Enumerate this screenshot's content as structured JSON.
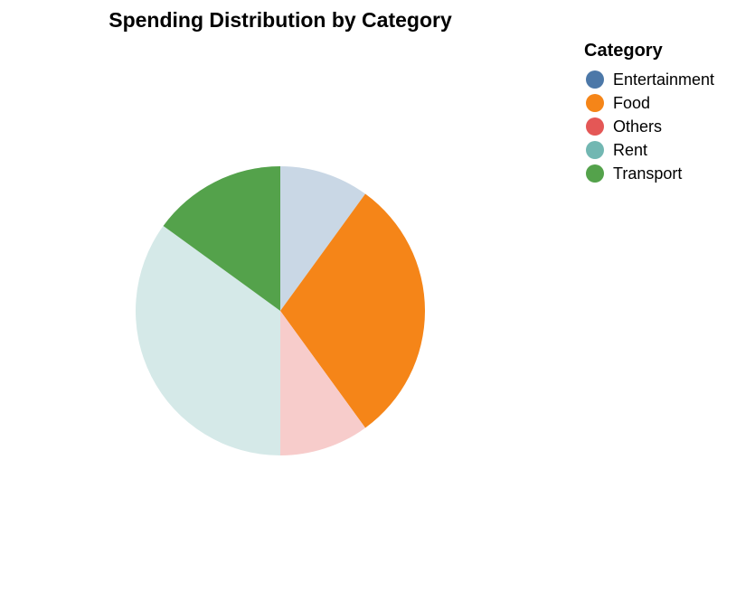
{
  "chart_data": {
    "type": "pie",
    "title": "Spending Distribution by Category",
    "legend": {
      "title": "Category",
      "placement": "top-right",
      "entries": [
        {
          "label": "Entertainment",
          "color": "#4c78a8"
        },
        {
          "label": "Food",
          "color": "#f58518"
        },
        {
          "label": "Others",
          "color": "#e45756"
        },
        {
          "label": "Rent",
          "color": "#72b7b2"
        },
        {
          "label": "Transport",
          "color": "#54a24b"
        }
      ]
    },
    "slices": [
      {
        "category": "Entertainment",
        "value": 10,
        "color": "#c9d7e5"
      },
      {
        "category": "Food",
        "value": 30,
        "color": "#f58518"
      },
      {
        "category": "Others",
        "value": 10,
        "color": "#f7cccb"
      },
      {
        "category": "Rent",
        "value": 35,
        "color": "#d5e9e8"
      },
      {
        "category": "Transport",
        "value": 15,
        "color": "#54a24b"
      }
    ]
  }
}
